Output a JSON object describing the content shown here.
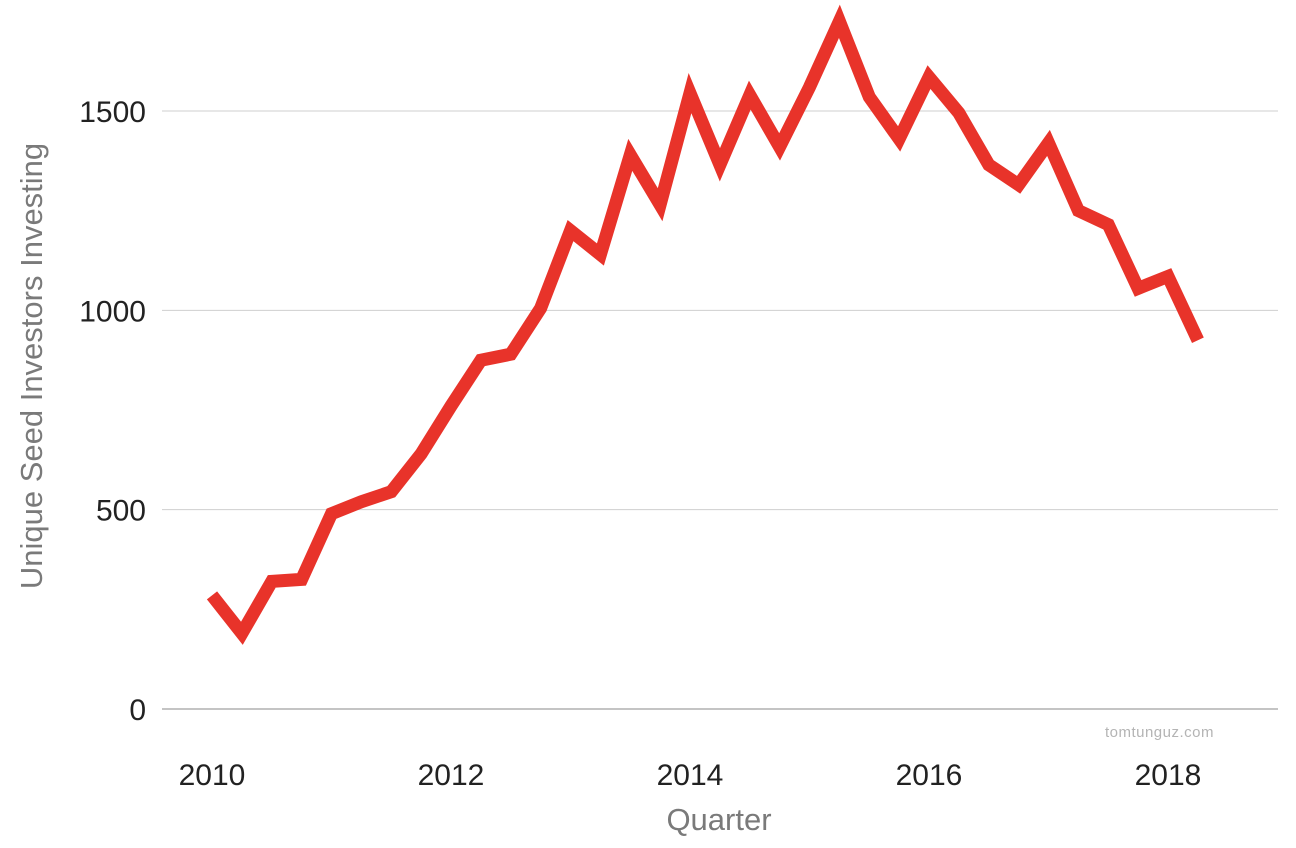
{
  "chart_data": {
    "type": "line",
    "xlabel": "Quarter",
    "ylabel": "Unique Seed Investors Investing",
    "xlim": [
      2010,
      2019
    ],
    "ylim": [
      0,
      1750
    ],
    "x_ticks": [
      2010,
      2012,
      2014,
      2016,
      2018
    ],
    "y_ticks": [
      0,
      500,
      1000,
      1500
    ],
    "grid": "horizontal",
    "legend": "none",
    "line_color": "#e8332a",
    "series": [
      {
        "x": [
          2010.0,
          2010.25,
          2010.5,
          2010.75,
          2011.0,
          2011.25,
          2011.5,
          2011.75,
          2012.0,
          2012.25,
          2012.5,
          2012.75,
          2013.0,
          2013.25,
          2013.5,
          2013.75,
          2014.0,
          2014.25,
          2014.5,
          2014.75,
          2015.0,
          2015.25,
          2015.5,
          2015.75,
          2016.0,
          2016.25,
          2016.5,
          2016.75,
          2017.0,
          2017.25,
          2017.5,
          2017.75,
          2018.0,
          2018.25
        ],
        "values": [
          285,
          190,
          320,
          325,
          490,
          520,
          545,
          640,
          760,
          875,
          890,
          1005,
          1200,
          1140,
          1390,
          1265,
          1545,
          1365,
          1540,
          1410,
          1560,
          1725,
          1535,
          1430,
          1585,
          1495,
          1365,
          1315,
          1420,
          1250,
          1215,
          1055,
          1085,
          925
        ]
      }
    ]
  },
  "watermark": "tomtunguz.com"
}
